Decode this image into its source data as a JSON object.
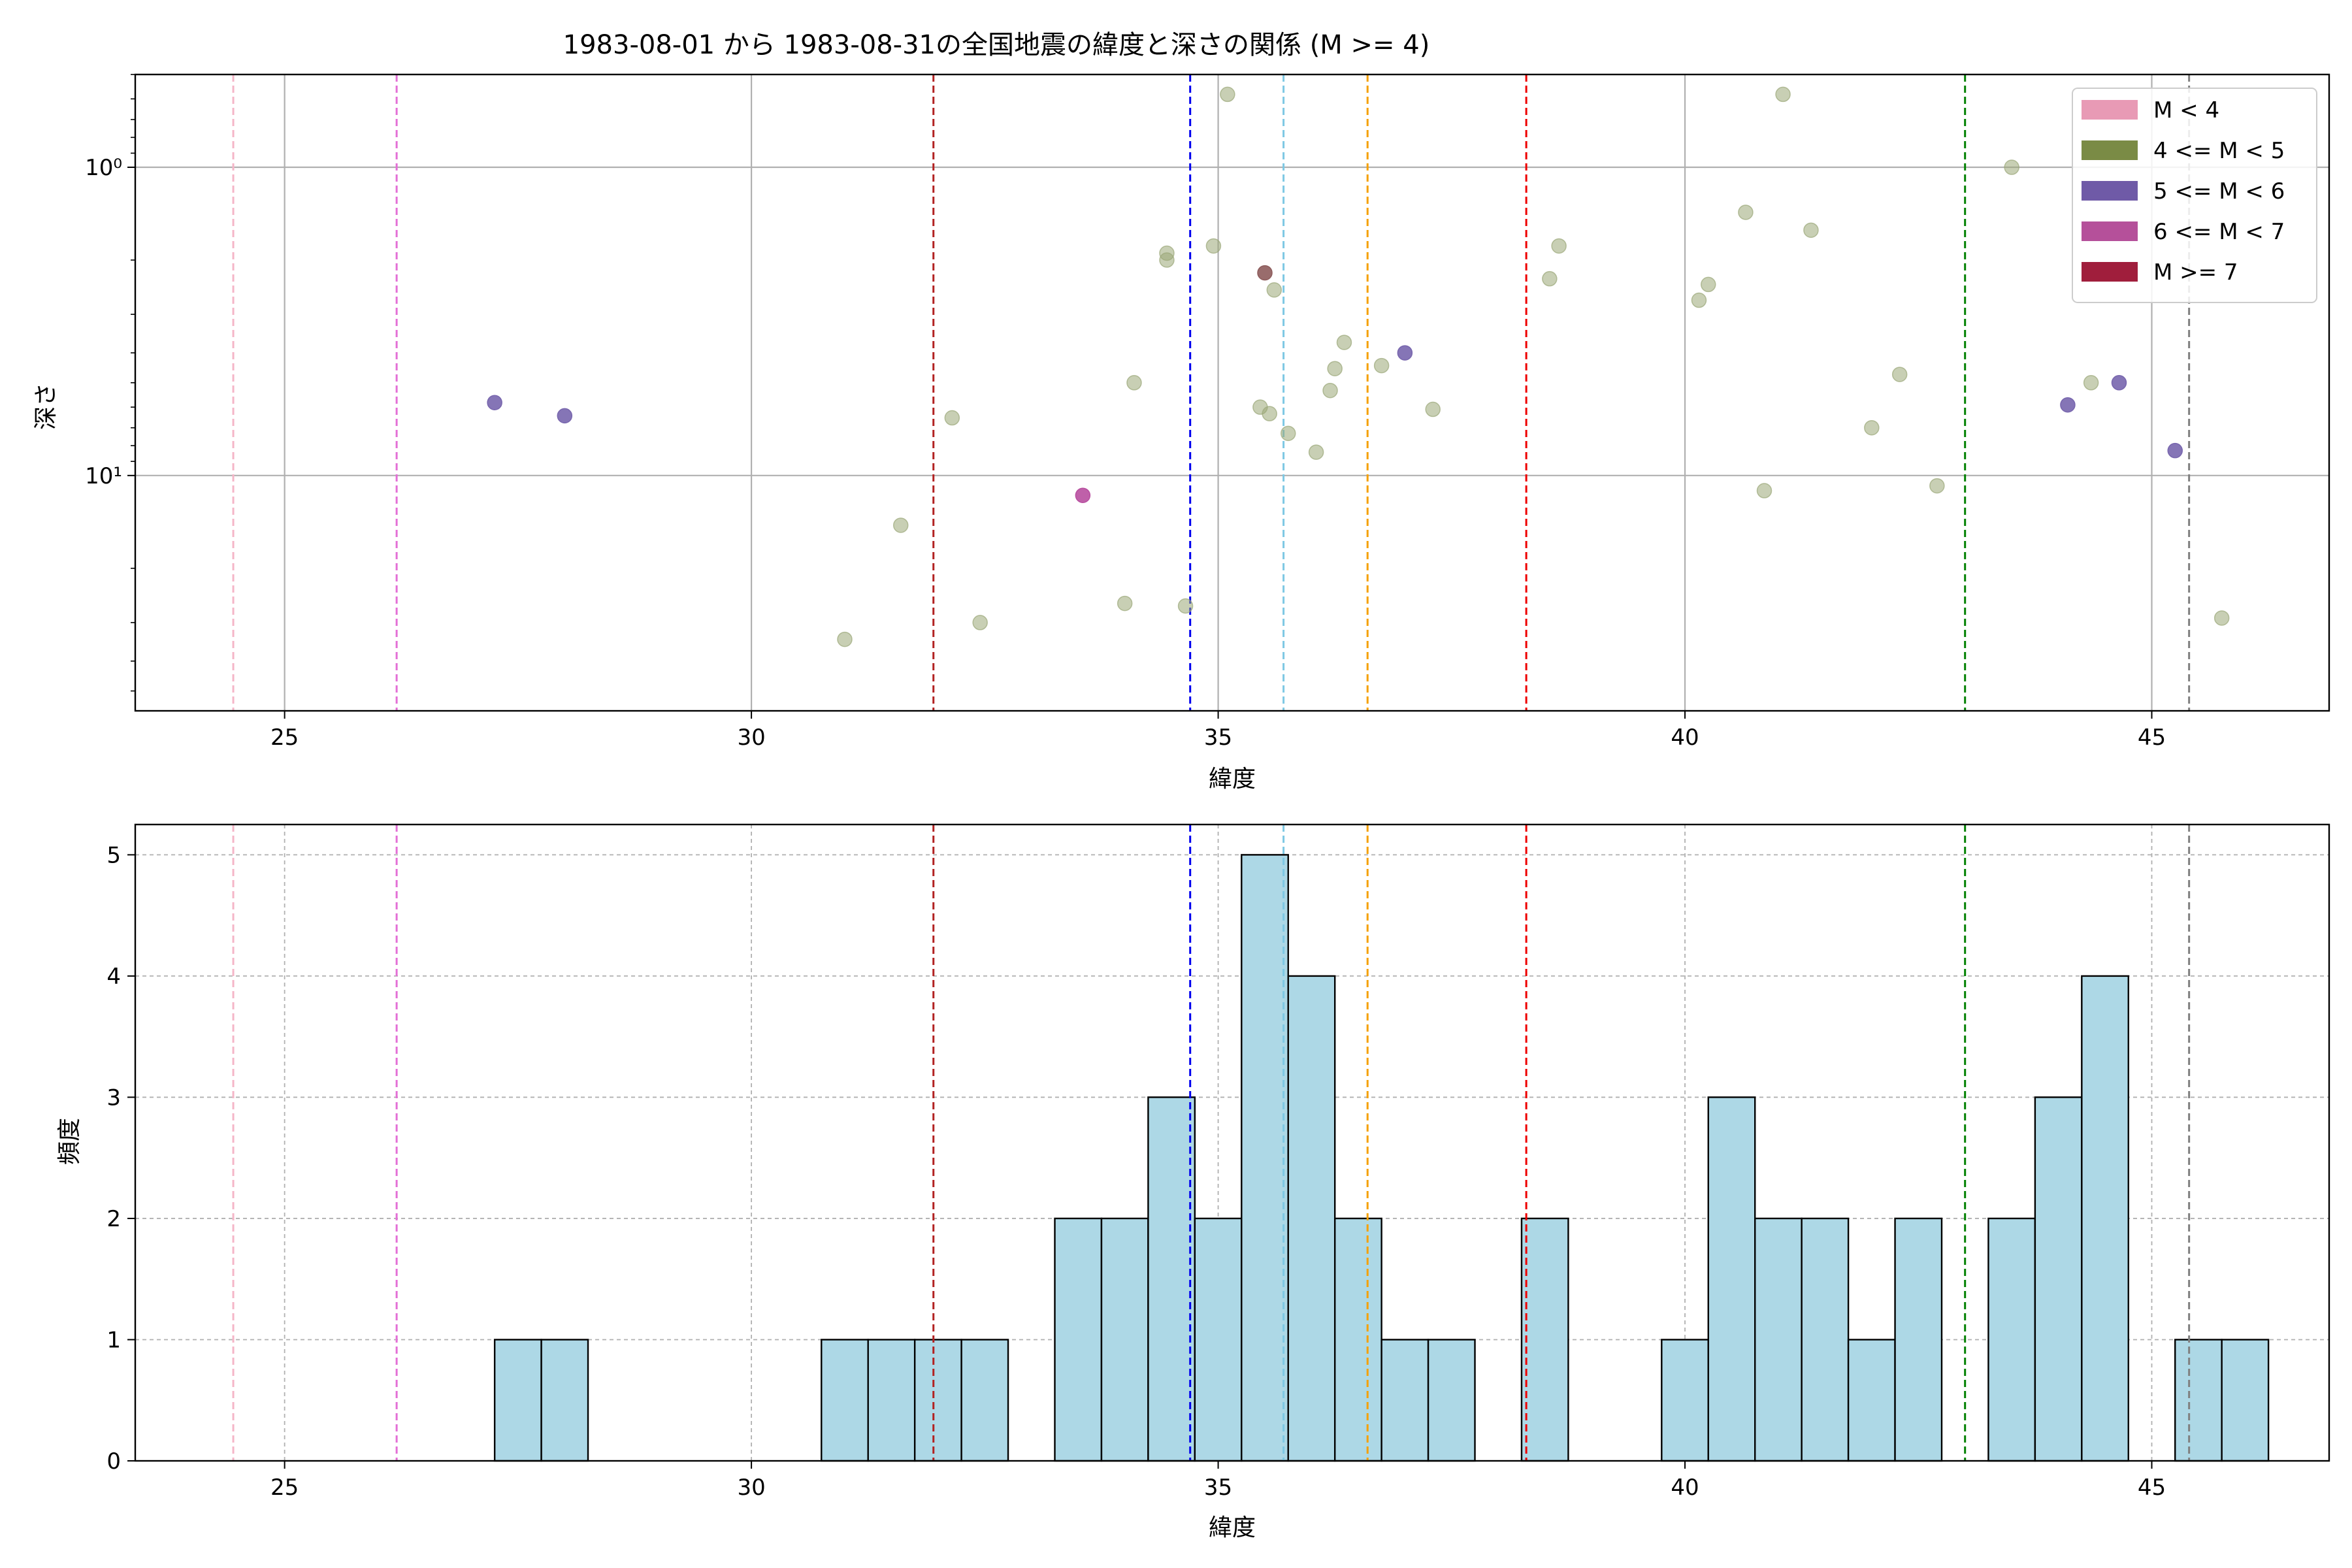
{
  "chart_data": [
    {
      "type": "scatter",
      "title": "1983-08-01 から 1983-08-31の全国地震の緯度と深さの関係 (M >= 4)",
      "xlabel": "緯度",
      "ylabel": "深さ",
      "xlim": [
        23.4,
        46.9
      ],
      "ylim": [
        0.5,
        58
      ],
      "yscale": "log",
      "y_inverted": true,
      "y_ticks": [
        {
          "value": 1,
          "label": "10⁰"
        },
        {
          "value": 10,
          "label": "10¹"
        }
      ],
      "x_ticks": [
        25,
        30,
        35,
        40,
        45
      ],
      "grid": true,
      "legend": {
        "placement": "top-right",
        "entries": [
          {
            "label": "M < 4",
            "color": "#e89ab5"
          },
          {
            "label": "4 <= M < 5",
            "color": "#7a8b45"
          },
          {
            "label": "5 <= M < 6",
            "color": "#6f5aa7"
          },
          {
            "label": "6 <= M < 7",
            "color": "#b5509a"
          },
          {
            "label": "M >= 7",
            "color": "#a01e3c"
          }
        ]
      },
      "reference_lines": [
        {
          "x": 24.45,
          "color": "#f5b6c8"
        },
        {
          "x": 26.2,
          "color": "#e36fd6"
        },
        {
          "x": 31.95,
          "color": "#b22222"
        },
        {
          "x": 34.7,
          "color": "#0000ee"
        },
        {
          "x": 35.7,
          "color": "#7ec8e3"
        },
        {
          "x": 36.6,
          "color": "#f5a000"
        },
        {
          "x": 38.3,
          "color": "#ee0000"
        },
        {
          "x": 43.0,
          "color": "#008000"
        },
        {
          "x": 45.4,
          "color": "#808080"
        }
      ],
      "series": [
        {
          "class": "4 <= M < 5",
          "color": "#9aa777",
          "points": [
            [
              31.0,
              34
            ],
            [
              31.6,
              14.5
            ],
            [
              32.15,
              6.5
            ],
            [
              32.45,
              30
            ],
            [
              34.0,
              26
            ],
            [
              34.1,
              5
            ],
            [
              34.45,
              1.9
            ],
            [
              34.45,
              2.0
            ],
            [
              34.65,
              26.5
            ],
            [
              34.95,
              1.8
            ],
            [
              35.1,
              0.58
            ],
            [
              35.45,
              6.0
            ],
            [
              35.55,
              6.3
            ],
            [
              35.6,
              2.5
            ],
            [
              35.75,
              7.3
            ],
            [
              36.05,
              8.4
            ],
            [
              36.2,
              5.3
            ],
            [
              36.25,
              4.5
            ],
            [
              36.35,
              3.7
            ],
            [
              36.75,
              4.4
            ],
            [
              37.3,
              6.1
            ],
            [
              38.55,
              2.3
            ],
            [
              38.65,
              1.8
            ],
            [
              40.15,
              2.7
            ],
            [
              40.25,
              2.4
            ],
            [
              40.65,
              1.4
            ],
            [
              40.85,
              11.2
            ],
            [
              41.05,
              0.58
            ],
            [
              41.35,
              1.6
            ],
            [
              42.0,
              7.0
            ],
            [
              42.3,
              4.7
            ],
            [
              42.7,
              10.8
            ],
            [
              43.5,
              1.0
            ],
            [
              44.35,
              5.0
            ],
            [
              45.75,
              29
            ]
          ]
        },
        {
          "class": "5 <= M < 6",
          "color": "#7866ae",
          "points": [
            [
              27.25,
              5.8
            ],
            [
              28.0,
              6.4
            ],
            [
              37.0,
              4.0
            ],
            [
              44.1,
              5.9
            ],
            [
              44.65,
              5.0
            ],
            [
              45.25,
              8.3
            ]
          ]
        },
        {
          "class": "6 <= M < 7",
          "color": "#b84fa0",
          "points": [
            [
              33.55,
              11.6
            ]
          ]
        },
        {
          "class": "M >= 7",
          "color": "#8e5c5c",
          "points": [
            [
              35.5,
              2.2
            ]
          ]
        }
      ]
    },
    {
      "type": "bar",
      "xlabel": "緯度",
      "ylabel": "頻度",
      "xlim": [
        23.4,
        46.9
      ],
      "ylim": [
        0,
        5.25
      ],
      "x_ticks": [
        25,
        30,
        35,
        40,
        45
      ],
      "y_ticks": [
        0,
        1,
        2,
        3,
        4,
        5
      ],
      "grid": true,
      "bar_color": "#add8e6",
      "edge_color": "#000000",
      "bin_start": 27.25,
      "bin_width": 0.5,
      "counts": [
        1,
        1,
        0,
        0,
        0,
        0,
        0,
        1,
        1,
        1,
        1,
        0,
        2,
        2,
        3,
        2,
        5,
        4,
        2,
        1,
        1,
        0,
        2,
        0,
        0,
        1,
        3,
        2,
        2,
        1,
        2,
        0,
        2,
        3,
        4,
        0,
        1,
        1
      ],
      "reference_lines": [
        {
          "x": 24.45,
          "color": "#f5b6c8"
        },
        {
          "x": 26.2,
          "color": "#e36fd6"
        },
        {
          "x": 31.95,
          "color": "#b22222"
        },
        {
          "x": 34.7,
          "color": "#0000ee"
        },
        {
          "x": 35.7,
          "color": "#7ec8e3"
        },
        {
          "x": 36.6,
          "color": "#f5a000"
        },
        {
          "x": 38.3,
          "color": "#ee0000"
        },
        {
          "x": 43.0,
          "color": "#008000"
        },
        {
          "x": 45.4,
          "color": "#808080"
        }
      ]
    }
  ]
}
